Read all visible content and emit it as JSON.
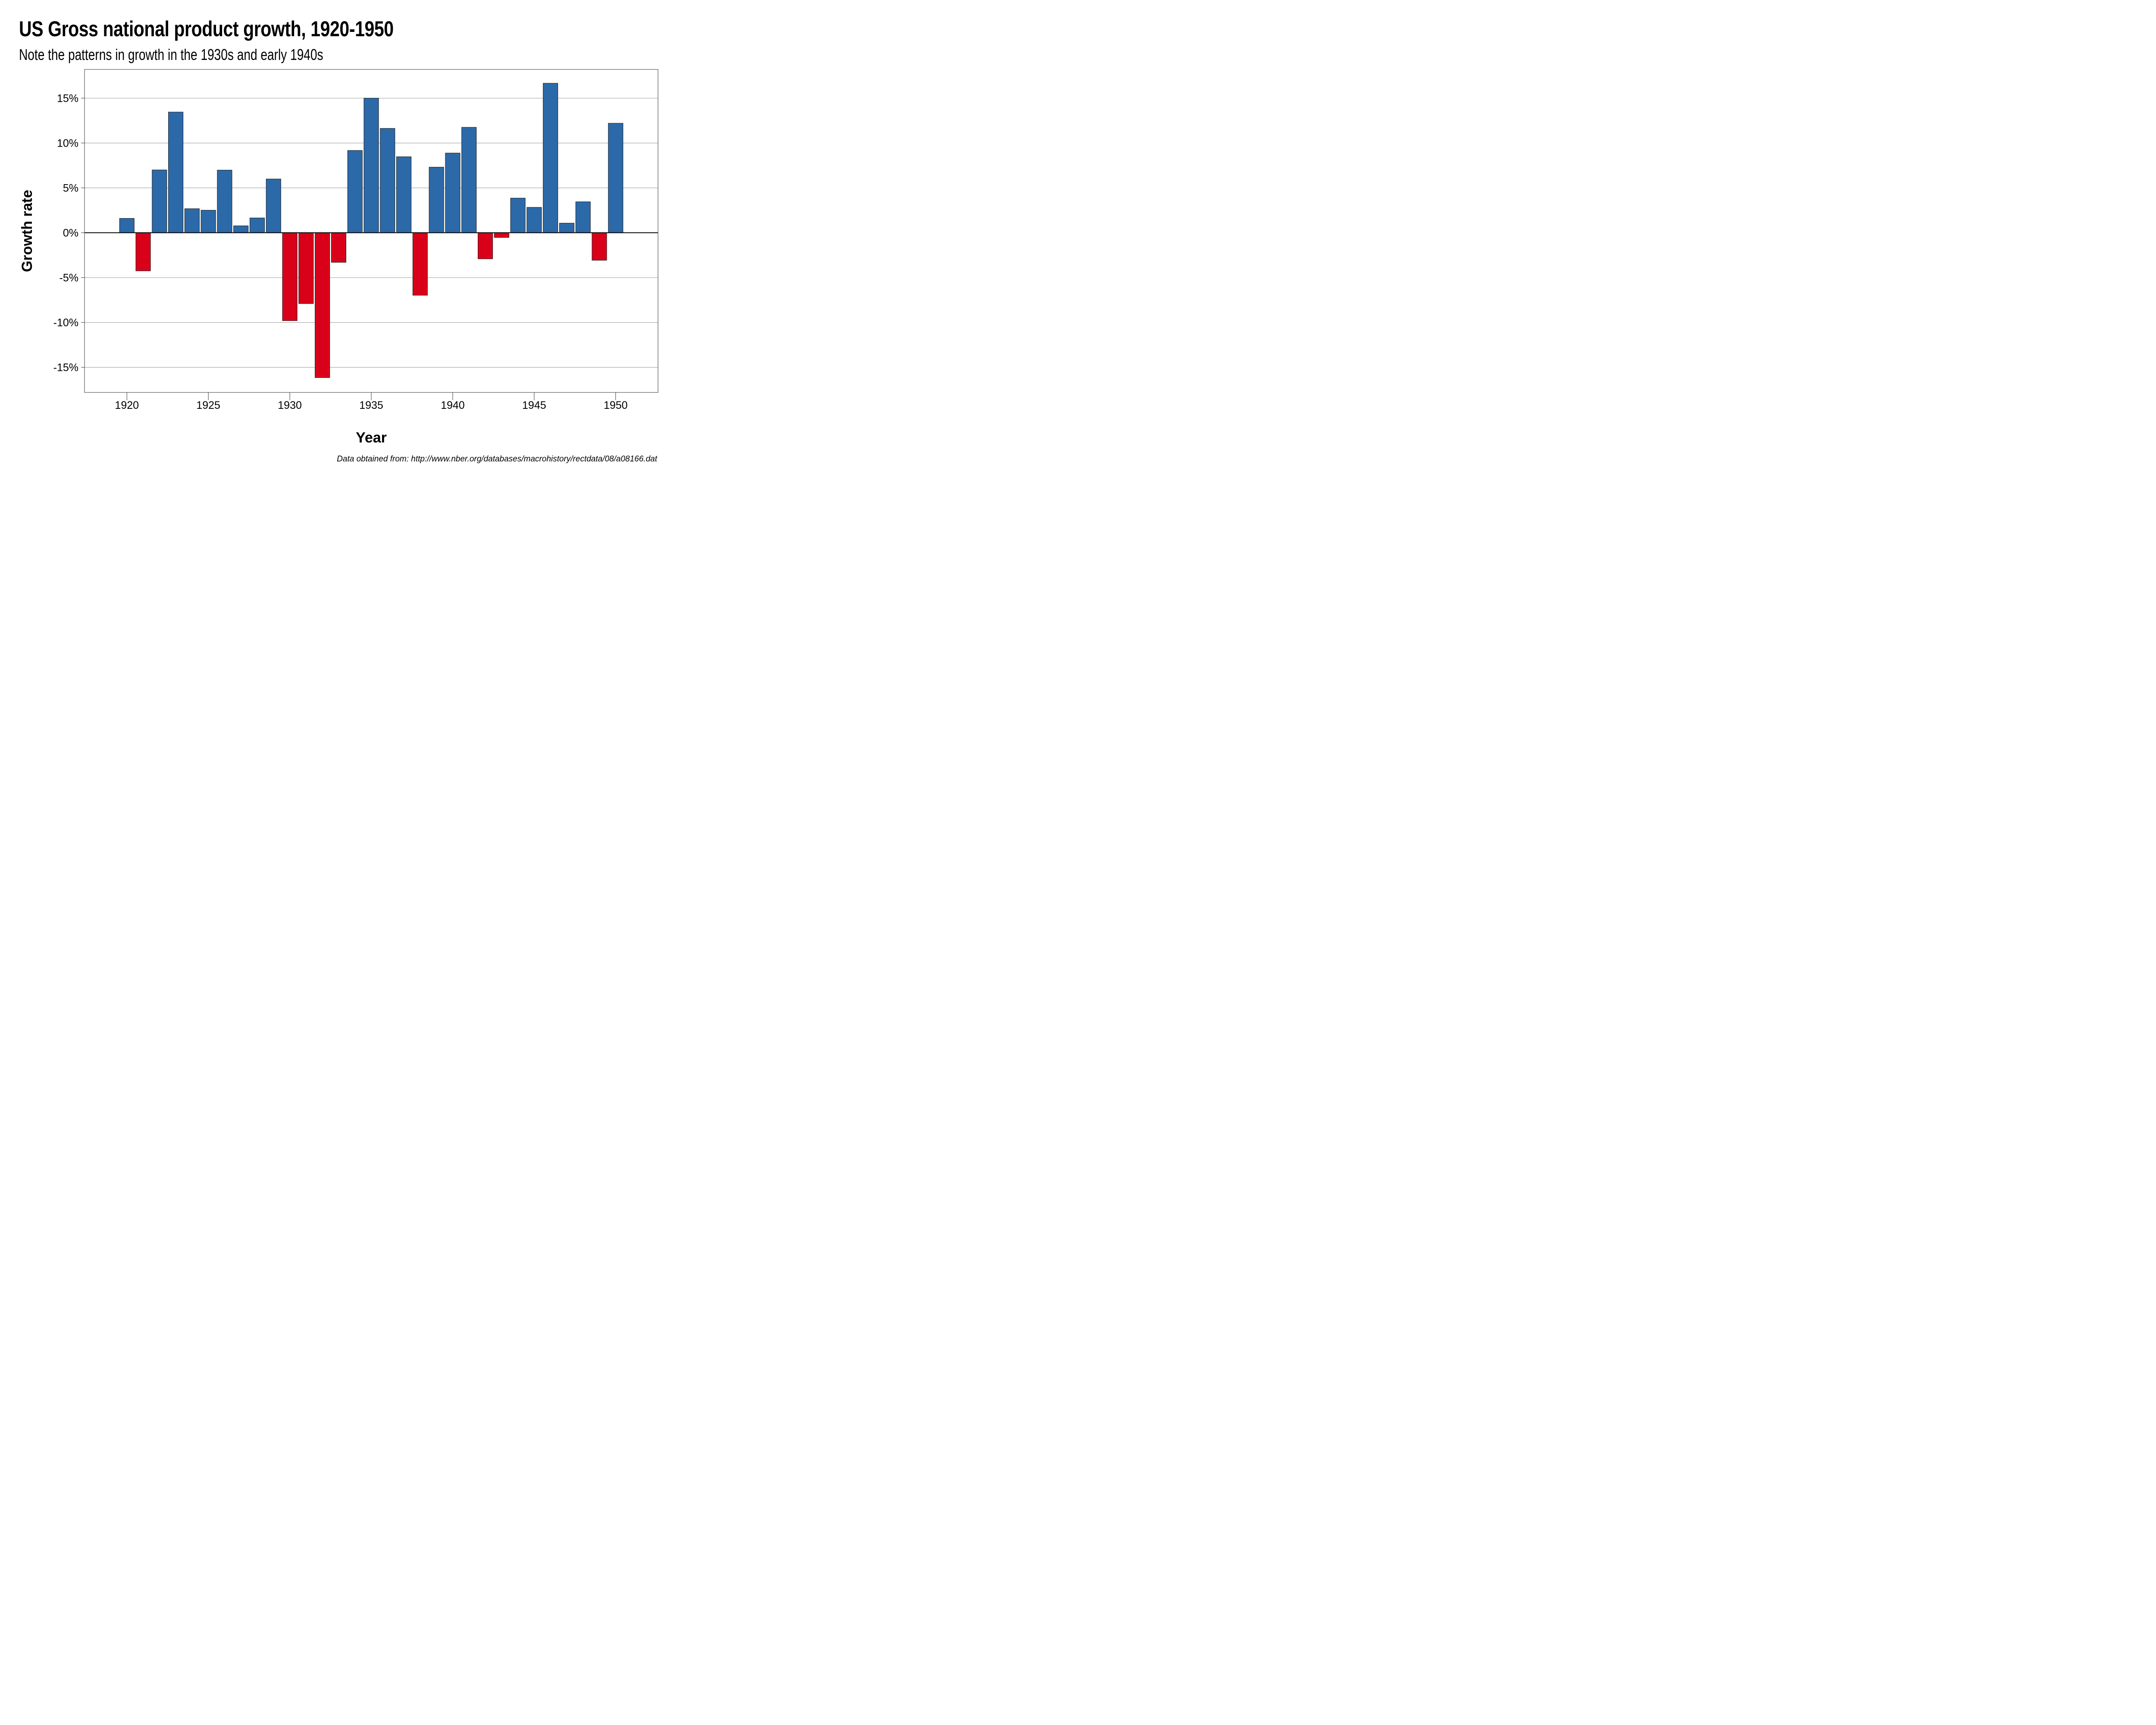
{
  "header": {
    "title": "US Gross national product growth, 1920-1950",
    "subtitle": "Note the patterns in growth in the 1930s and early 1940s"
  },
  "caption": "Data obtained from: http://www.nber.org/databases/macrohistory/rectdata/08/a08166.dat",
  "colors": {
    "positive": "#2C69A8",
    "negative": "#D90019",
    "bar_outline": "#1a1a1a",
    "grid": "#a8a8a8",
    "zero_line": "#000000",
    "frame": "#333333"
  },
  "chart_data": {
    "type": "bar",
    "title": "US Gross national product growth, 1920-1950",
    "subtitle": "Note the patterns in growth in the 1930s and early 1940s",
    "xlabel": "Year",
    "ylabel": "Growth rate",
    "categories": [
      1920,
      1921,
      1922,
      1923,
      1924,
      1925,
      1926,
      1927,
      1928,
      1929,
      1930,
      1931,
      1932,
      1933,
      1934,
      1935,
      1936,
      1937,
      1938,
      1939,
      1940,
      1941,
      1942,
      1943,
      1944,
      1945,
      1946,
      1947,
      1948,
      1949,
      1950
    ],
    "values": [
      1.6,
      -4.25,
      7.0,
      13.45,
      2.68,
      2.51,
      6.98,
      0.77,
      1.65,
      5.99,
      -9.8,
      -7.9,
      -16.15,
      -3.3,
      9.17,
      15.0,
      11.63,
      8.47,
      -6.97,
      7.31,
      8.88,
      11.75,
      -2.91,
      -0.53,
      3.86,
      2.83,
      16.66,
      1.07,
      3.45,
      -3.07,
      12.2
    ],
    "value_unit": "percent",
    "color_rule": "positive values blue, negative values red",
    "xlim": [
      1917.4,
      1952.6
    ],
    "ylim": [
      -17.8,
      18.2
    ],
    "x_ticks": [
      1920,
      1925,
      1930,
      1935,
      1940,
      1945,
      1950
    ],
    "x_tick_labels": [
      "1920",
      "1925",
      "1930",
      "1935",
      "1940",
      "1945",
      "1950"
    ],
    "y_ticks": [
      15,
      10,
      5,
      0,
      -5,
      -10,
      -15
    ],
    "y_tick_labels": [
      "15%",
      "10%",
      "5%",
      "0%",
      "-5%",
      "-10%",
      "-15%"
    ],
    "grid": "horizontal major gridlines",
    "legend": "none",
    "caption": "Data obtained from: http://www.nber.org/databases/macrohistory/rectdata/08/a08166.dat"
  }
}
